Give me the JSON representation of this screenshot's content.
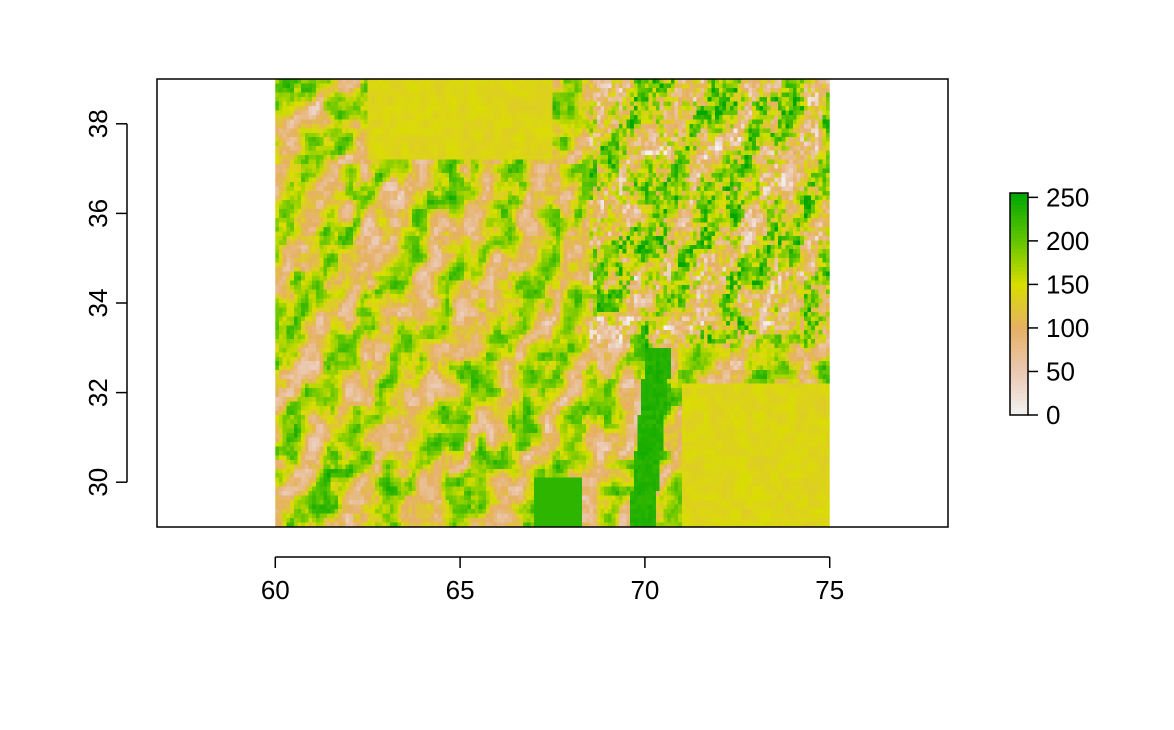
{
  "chart_data": {
    "type": "heatmap",
    "title": "",
    "xlabel": "",
    "ylabel": "",
    "xlim": [
      56.8,
      78.2
    ],
    "ylim": [
      29.0,
      39.0
    ],
    "raster_extent": {
      "xmin": 60.0,
      "xmax": 75.0,
      "ymin": 29.0,
      "ymax": 39.0
    },
    "x_ticks": [
      {
        "value": 60,
        "label": "60"
      },
      {
        "value": 65,
        "label": "65"
      },
      {
        "value": 70,
        "label": "70"
      },
      {
        "value": 75,
        "label": "75"
      }
    ],
    "y_ticks": [
      {
        "value": 30,
        "label": "30"
      },
      {
        "value": 32,
        "label": "32"
      },
      {
        "value": 34,
        "label": "34"
      },
      {
        "value": 36,
        "label": "36"
      },
      {
        "value": 38,
        "label": "38"
      }
    ],
    "legend": {
      "placement": "right",
      "range": [
        0,
        255
      ],
      "ticks": [
        {
          "value": 0,
          "label": "0"
        },
        {
          "value": 50,
          "label": "50"
        },
        {
          "value": 100,
          "label": "100"
        },
        {
          "value": 150,
          "label": "150"
        },
        {
          "value": 200,
          "label": "200"
        },
        {
          "value": 250,
          "label": "250"
        }
      ]
    },
    "color_scale": [
      {
        "value": 0,
        "color": "#f2f2f2"
      },
      {
        "value": 50,
        "color": "#ebc9b3"
      },
      {
        "value": 100,
        "color": "#e6b065"
      },
      {
        "value": 150,
        "color": "#d9de00"
      },
      {
        "value": 200,
        "color": "#63c600"
      },
      {
        "value": 255,
        "color": "#00a600"
      }
    ],
    "grid": false
  }
}
